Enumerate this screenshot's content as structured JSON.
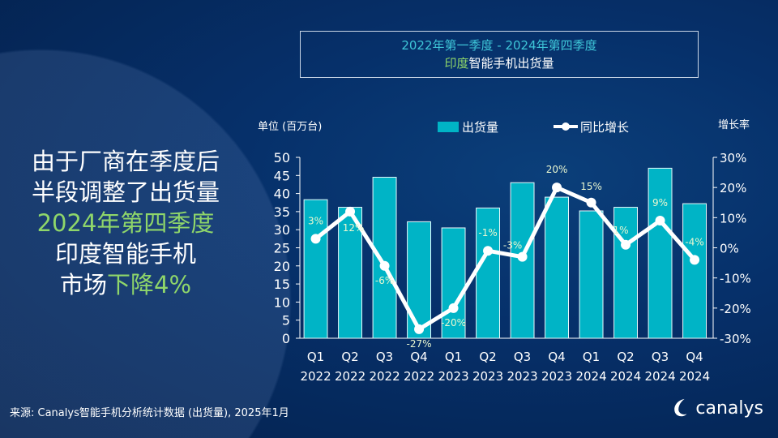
{
  "title_box": {
    "line1": "2022年第一季度 - 2024年第四季度",
    "line2_green": "印度",
    "line2_rest": "智能手机出货量"
  },
  "headline": {
    "line1": "由于厂商在季度后",
    "line2": "半段调整了出货量",
    "line3": "2024年第四季度",
    "line4": "印度智能手机",
    "line5_a": "市场",
    "line5_b": "下降4%"
  },
  "source": "来源: Canalys智能手机分析统计数据 (出货量), 2025年1月",
  "logo_text": "canalys",
  "colors": {
    "bar": "#00b4c6",
    "line": "#ffffff",
    "accent_green": "#8fd66a",
    "title_cyan": "#3ec6d8"
  },
  "chart_data": {
    "type": "bar+line",
    "left_axis_label": "单位 (百万台)",
    "right_axis_label": "增长率",
    "categories": [
      "Q1 2022",
      "Q2 2022",
      "Q3 2022",
      "Q4 2022",
      "Q1 2023",
      "Q2 2023",
      "Q3 2023",
      "Q4 2023",
      "Q1 2024",
      "Q2 2024",
      "Q3 2024",
      "Q4 2024"
    ],
    "category_quarters": [
      "Q1",
      "Q2",
      "Q3",
      "Q4",
      "Q1",
      "Q2",
      "Q3",
      "Q4",
      "Q1",
      "Q2",
      "Q3",
      "Q4"
    ],
    "category_years": [
      "2022",
      "2022",
      "2022",
      "2022",
      "2023",
      "2023",
      "2023",
      "2023",
      "2024",
      "2024",
      "2024",
      "2024"
    ],
    "series": [
      {
        "name": "出货量",
        "type": "bar",
        "axis": "left",
        "values": [
          38.3,
          36.2,
          44.5,
          32.2,
          30.5,
          36.0,
          43.0,
          39.0,
          35.2,
          36.2,
          47.0,
          37.2
        ]
      },
      {
        "name": "同比增长",
        "type": "line",
        "axis": "right",
        "values": [
          3,
          12,
          -6,
          -27,
          -20,
          -1,
          -3,
          20,
          15,
          1,
          9,
          -4
        ],
        "labels": [
          "3%",
          "12%",
          "-6%",
          "-27%",
          "-20%",
          "-1%",
          "-3%",
          "20%",
          "15%",
          "1%",
          "9%",
          "-4%"
        ]
      }
    ],
    "left_ylim": [
      0,
      50
    ],
    "left_ticks": [
      "0",
      "5",
      "10",
      "15",
      "20",
      "25",
      "30",
      "35",
      "40",
      "45",
      "50"
    ],
    "right_ylim": [
      -30,
      30
    ],
    "right_ticks": [
      "-30%",
      "-20%",
      "-10%",
      "0%",
      "10%",
      "20%",
      "30%"
    ],
    "legend_position": "top",
    "grid": false
  }
}
